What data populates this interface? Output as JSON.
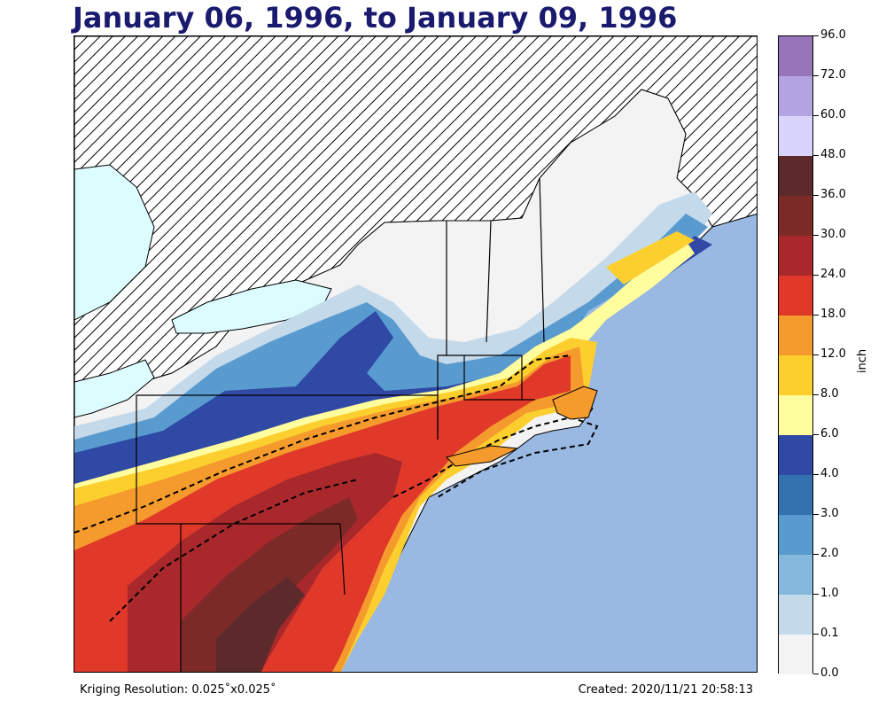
{
  "title": "January 06, 1996, to January 09, 1996",
  "colorbar": {
    "unit": "inch",
    "levels": [
      {
        "label": "96.0",
        "color": "#9775b8"
      },
      {
        "label": "72.0",
        "color": "#b3a3e0"
      },
      {
        "label": "60.0",
        "color": "#d8d4fb"
      },
      {
        "label": "48.0",
        "color": "#5c2a2a"
      },
      {
        "label": "36.0",
        "color": "#7c2a28"
      },
      {
        "label": "30.0",
        "color": "#a8282b"
      },
      {
        "label": "24.0",
        "color": "#e0392a"
      },
      {
        "label": "18.0",
        "color": "#f59a2c"
      },
      {
        "label": "12.0",
        "color": "#fccf2e"
      },
      {
        "label": "8.0",
        "color": "#fffd9e"
      },
      {
        "label": "6.0",
        "color": "#2f49a4"
      },
      {
        "label": "4.0",
        "color": "#3372ae"
      },
      {
        "label": "3.0",
        "color": "#5a9bcf"
      },
      {
        "label": "2.0",
        "color": "#84b9dd"
      },
      {
        "label": "1.0",
        "color": "#c4d9ea"
      },
      {
        "label": "0.1",
        "color": "#f3f3f3"
      },
      {
        "label": "0.0",
        "color": null
      }
    ]
  },
  "footer": {
    "left": "Kriging Resolution: 0.025˚x0.025˚",
    "right": "Created: 2020/11/21 20:58:13"
  }
}
